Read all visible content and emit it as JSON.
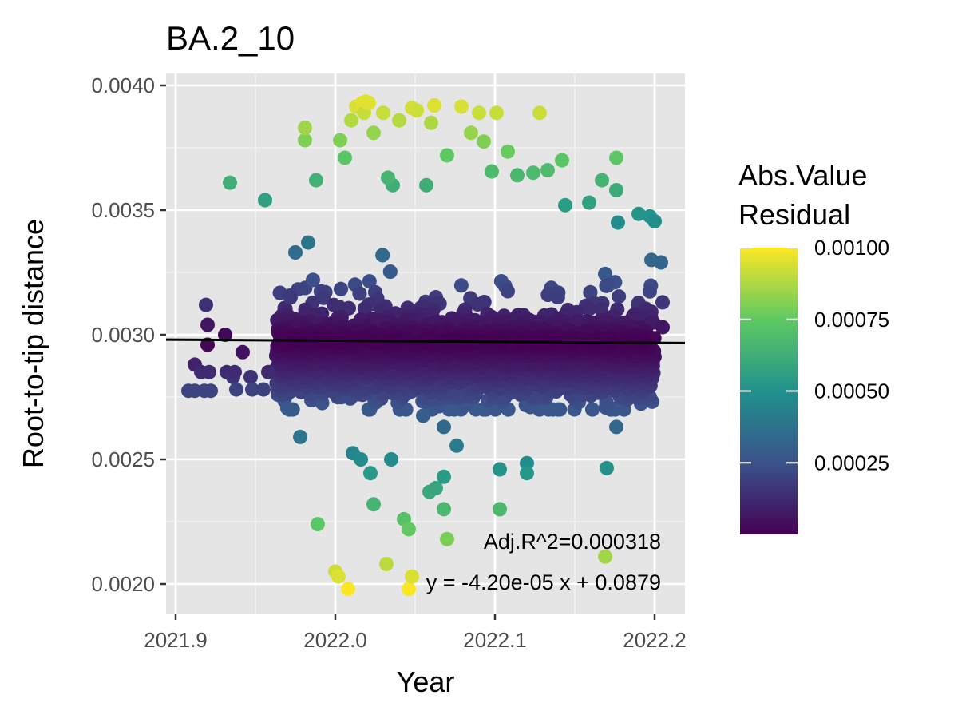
{
  "chart_data": {
    "type": "scatter",
    "title": "BA.2_10",
    "xlabel": "Year",
    "ylabel": "Root-to-tip distance",
    "xlim": [
      2021.88,
      2022.22
    ],
    "ylim": [
      0.0019,
      0.004
    ],
    "x_ticks": [
      2021.9,
      2022.0,
      2022.1,
      2022.2
    ],
    "x_tick_labels": [
      "2021.9",
      "2022.0",
      "2022.1",
      "2022.2"
    ],
    "y_ticks": [
      0.002,
      0.0025,
      0.003,
      0.0035,
      0.004
    ],
    "y_tick_labels": [
      "0.0020",
      "0.0025",
      "0.0030",
      "0.0035",
      "0.0040"
    ],
    "grid": true,
    "background": "#e5e5e5",
    "legend": {
      "title_line1": "Abs.Value",
      "title_line2": "Residual",
      "placement": "right",
      "min": 0,
      "max": 0.001,
      "ticks": [
        0.00025,
        0.0005,
        0.00075,
        0.001
      ],
      "tick_labels": [
        "0.00025",
        "0.00050",
        "0.00075",
        "0.00100"
      ],
      "colormap": "viridis",
      "colors": [
        "#440154",
        "#3b528b",
        "#21918c",
        "#5ec962",
        "#fde725"
      ]
    },
    "regression": {
      "slope": -4.2e-05,
      "intercept": 0.0879,
      "color": "#000000"
    },
    "annotations": [
      "Adj.R^2=0.000318",
      "y = -4.20e-05 x + 0.0879"
    ],
    "cloud": {
      "x_range": [
        2021.963,
        2022.2
      ],
      "y_range": [
        0.0027,
        0.0032
      ],
      "n_points": 4200
    },
    "points": [
      {
        "x": 2021.908,
        "y": 0.002775
      },
      {
        "x": 2021.912,
        "y": 0.00288
      },
      {
        "x": 2021.912,
        "y": 0.002775
      },
      {
        "x": 2021.916,
        "y": 0.00285
      },
      {
        "x": 2021.918,
        "y": 0.002775
      },
      {
        "x": 2021.919,
        "y": 0.00312
      },
      {
        "x": 2021.92,
        "y": 0.00304
      },
      {
        "x": 2021.92,
        "y": 0.00296
      },
      {
        "x": 2021.921,
        "y": 0.00285
      },
      {
        "x": 2021.922,
        "y": 0.002775
      },
      {
        "x": 2021.931,
        "y": 0.003
      },
      {
        "x": 2021.932,
        "y": 0.00285
      },
      {
        "x": 2021.936,
        "y": 0.00283
      },
      {
        "x": 2021.937,
        "y": 0.00285
      },
      {
        "x": 2021.938,
        "y": 0.00278
      },
      {
        "x": 2021.942,
        "y": 0.00293
      },
      {
        "x": 2021.947,
        "y": 0.00283
      },
      {
        "x": 2021.948,
        "y": 0.00278
      },
      {
        "x": 2021.955,
        "y": 0.00278
      },
      {
        "x": 2021.958,
        "y": 0.00285
      },
      {
        "x": 2021.934,
        "y": 0.00361
      },
      {
        "x": 2021.956,
        "y": 0.00354
      },
      {
        "x": 2021.97,
        "y": 0.002705
      },
      {
        "x": 2021.975,
        "y": 0.00333
      },
      {
        "x": 2021.978,
        "y": 0.00259
      },
      {
        "x": 2021.981,
        "y": 0.00378
      },
      {
        "x": 2021.981,
        "y": 0.00383
      },
      {
        "x": 2021.983,
        "y": 0.00337
      },
      {
        "x": 2021.988,
        "y": 0.00362
      },
      {
        "x": 2021.989,
        "y": 0.00224
      },
      {
        "x": 2022.0,
        "y": 0.00205
      },
      {
        "x": 2022.002,
        "y": 0.00203
      },
      {
        "x": 2022.008,
        "y": 0.00198
      },
      {
        "x": 2022.011,
        "y": 0.002525
      },
      {
        "x": 2022.013,
        "y": 0.003915
      },
      {
        "x": 2022.016,
        "y": 0.00392
      },
      {
        "x": 2022.016,
        "y": 0.0025
      },
      {
        "x": 2022.017,
        "y": 0.00393
      },
      {
        "x": 2022.018,
        "y": 0.00389
      },
      {
        "x": 2022.019,
        "y": 0.003935
      },
      {
        "x": 2022.021,
        "y": 0.00393
      },
      {
        "x": 2022.022,
        "y": 0.002445
      },
      {
        "x": 2022.024,
        "y": 0.00232
      },
      {
        "x": 2022.03,
        "y": 0.00389
      },
      {
        "x": 2022.032,
        "y": 0.00208
      },
      {
        "x": 2022.035,
        "y": 0.0025
      },
      {
        "x": 2022.04,
        "y": 0.00386
      },
      {
        "x": 2022.043,
        "y": 0.00226
      },
      {
        "x": 2022.046,
        "y": 0.00222
      },
      {
        "x": 2022.046,
        "y": 0.00198
      },
      {
        "x": 2022.048,
        "y": 0.00203
      },
      {
        "x": 2022.048,
        "y": 0.00391
      },
      {
        "x": 2022.051,
        "y": 0.0039
      },
      {
        "x": 2022.055,
        "y": 0.002675
      },
      {
        "x": 2022.059,
        "y": 0.00237
      },
      {
        "x": 2022.06,
        "y": 0.00385
      },
      {
        "x": 2022.062,
        "y": 0.00392
      },
      {
        "x": 2022.063,
        "y": 0.002385
      },
      {
        "x": 2022.068,
        "y": 0.00263
      },
      {
        "x": 2022.068,
        "y": 0.00243
      },
      {
        "x": 2022.068,
        "y": 0.0023
      },
      {
        "x": 2022.07,
        "y": 0.00218
      },
      {
        "x": 2022.076,
        "y": 0.002555
      },
      {
        "x": 2022.079,
        "y": 0.003915
      },
      {
        "x": 2022.09,
        "y": 0.00389
      },
      {
        "x": 2022.101,
        "y": 0.00389
      },
      {
        "x": 2022.103,
        "y": 0.00246
      },
      {
        "x": 2022.103,
        "y": 0.0023
      },
      {
        "x": 2022.12,
        "y": 0.002485
      },
      {
        "x": 2022.12,
        "y": 0.002445
      },
      {
        "x": 2022.128,
        "y": 0.00389
      },
      {
        "x": 2022.142,
        "y": 0.0037
      },
      {
        "x": 2022.17,
        "y": 0.002465
      },
      {
        "x": 2022.169,
        "y": 0.00211
      },
      {
        "x": 2022.176,
        "y": 0.00371
      },
      {
        "x": 2022.176,
        "y": 0.00263
      },
      {
        "x": 2022.176,
        "y": 0.00358
      },
      {
        "x": 2022.177,
        "y": 0.00345
      },
      {
        "x": 2022.19,
        "y": 0.003485
      },
      {
        "x": 2022.197,
        "y": 0.003475
      },
      {
        "x": 2022.2,
        "y": 0.003455
      },
      {
        "x": 2022.204,
        "y": 0.00329
      },
      {
        "x": 2022.198,
        "y": 0.0033
      },
      {
        "x": 2022.205,
        "y": 0.00313
      },
      {
        "x": 2022.205,
        "y": 0.00303
      },
      {
        "x": 2022.003,
        "y": 0.00378
      },
      {
        "x": 2022.006,
        "y": 0.00371
      },
      {
        "x": 2022.01,
        "y": 0.00386
      },
      {
        "x": 2022.024,
        "y": 0.00381
      },
      {
        "x": 2022.036,
        "y": 0.0036
      },
      {
        "x": 2022.057,
        "y": 0.0036
      },
      {
        "x": 2022.085,
        "y": 0.00381
      },
      {
        "x": 2022.093,
        "y": 0.003775
      },
      {
        "x": 2022.108,
        "y": 0.003735
      },
      {
        "x": 2022.133,
        "y": 0.00366
      },
      {
        "x": 2022.144,
        "y": 0.00352
      },
      {
        "x": 2022.159,
        "y": 0.00353
      },
      {
        "x": 2022.167,
        "y": 0.00362
      },
      {
        "x": 2022.033,
        "y": 0.00363
      },
      {
        "x": 2022.07,
        "y": 0.00372
      },
      {
        "x": 2022.098,
        "y": 0.003655
      },
      {
        "x": 2022.114,
        "y": 0.00364
      },
      {
        "x": 2022.124,
        "y": 0.00365
      },
      {
        "x": 2021.986,
        "y": 0.00322
      },
      {
        "x": 2021.972,
        "y": 0.00315
      }
    ]
  }
}
